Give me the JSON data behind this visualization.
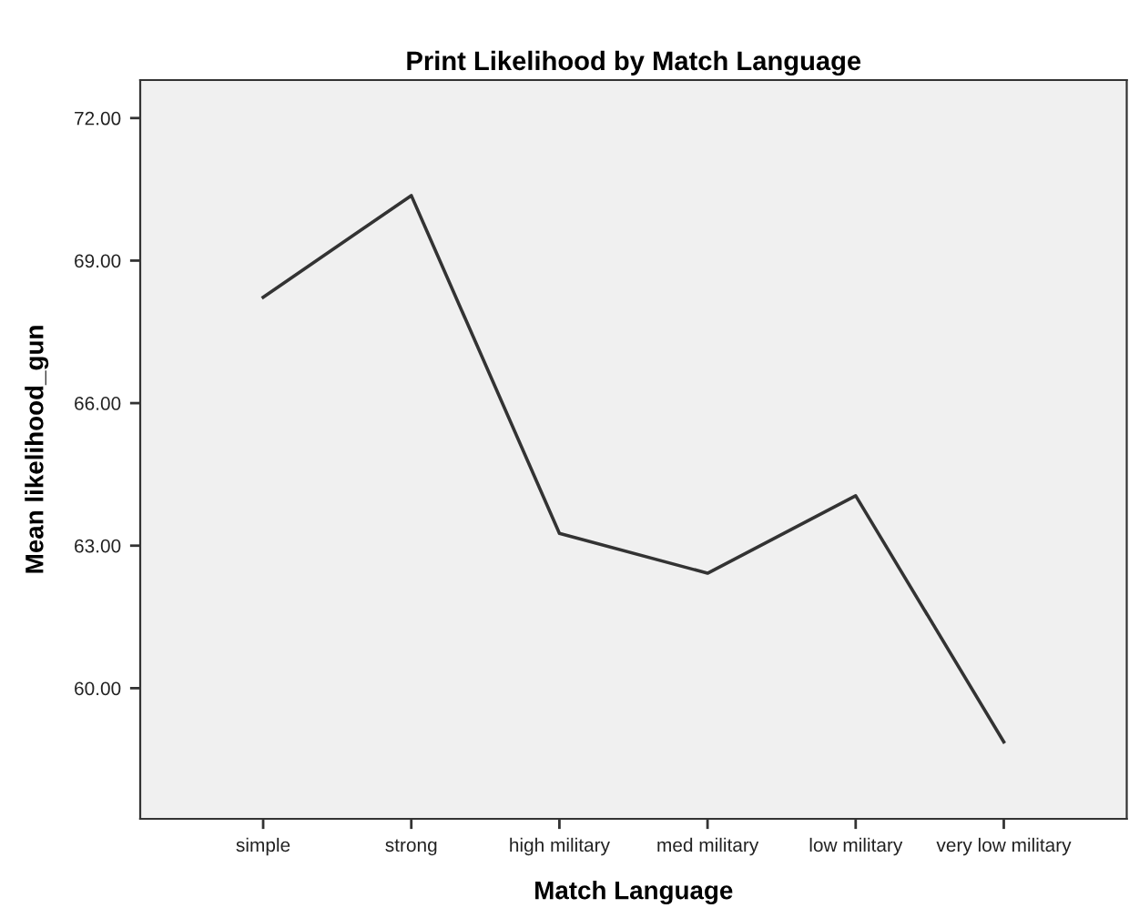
{
  "chart_data": {
    "type": "line",
    "title": "Print Likelihood by Match Language",
    "xlabel": "Match Language",
    "ylabel": "Mean likelihood_gun",
    "categories": [
      "simple",
      "strong",
      "high military",
      "med military",
      "low military",
      "very low military"
    ],
    "series": [
      {
        "color": "#333333",
        "values": [
          68.23,
          70.37,
          63.26,
          62.42,
          64.05,
          58.87
        ]
      }
    ],
    "ylim": [
      57.25,
      72.8
    ],
    "yticks": [
      {
        "value": 60,
        "label": "60.00"
      },
      {
        "value": 63,
        "label": "63.00"
      },
      {
        "value": 66,
        "label": "66.00"
      },
      {
        "value": 69,
        "label": "69.00"
      },
      {
        "value": 72,
        "label": "72.00"
      }
    ],
    "grid": false,
    "marker": "none",
    "line_style": "solid"
  }
}
